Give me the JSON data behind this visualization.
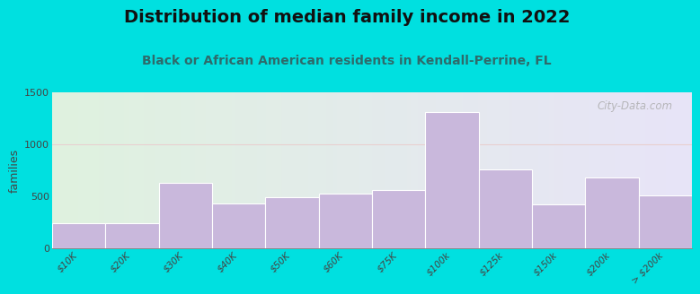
{
  "title": "Distribution of median family income in 2022",
  "subtitle": "Black or African American residents in Kendall-Perrine, FL",
  "categories": [
    "$10K",
    "$20K",
    "$30K",
    "$40K",
    "$50K",
    "$60K",
    "$75K",
    "$100k",
    "$125k",
    "$150k",
    "$200k",
    "> $200k"
  ],
  "values": [
    240,
    240,
    630,
    430,
    490,
    525,
    555,
    1310,
    755,
    420,
    680,
    510
  ],
  "bar_color": "#c9b8dc",
  "bar_edge_color": "#ffffff",
  "background_outer": "#00e0e0",
  "plot_bg_left": "#dff2df",
  "plot_bg_right": "#e8e4f4",
  "title_fontsize": 14,
  "title_color": "#111111",
  "subtitle_fontsize": 10,
  "subtitle_color": "#2e6b6b",
  "ylabel": "families",
  "ylim": [
    0,
    1500
  ],
  "yticks": [
    0,
    500,
    1000,
    1500
  ],
  "watermark": "City-Data.com",
  "watermark_color": "#aaaaaa",
  "grid_color": "#e8d0d0"
}
